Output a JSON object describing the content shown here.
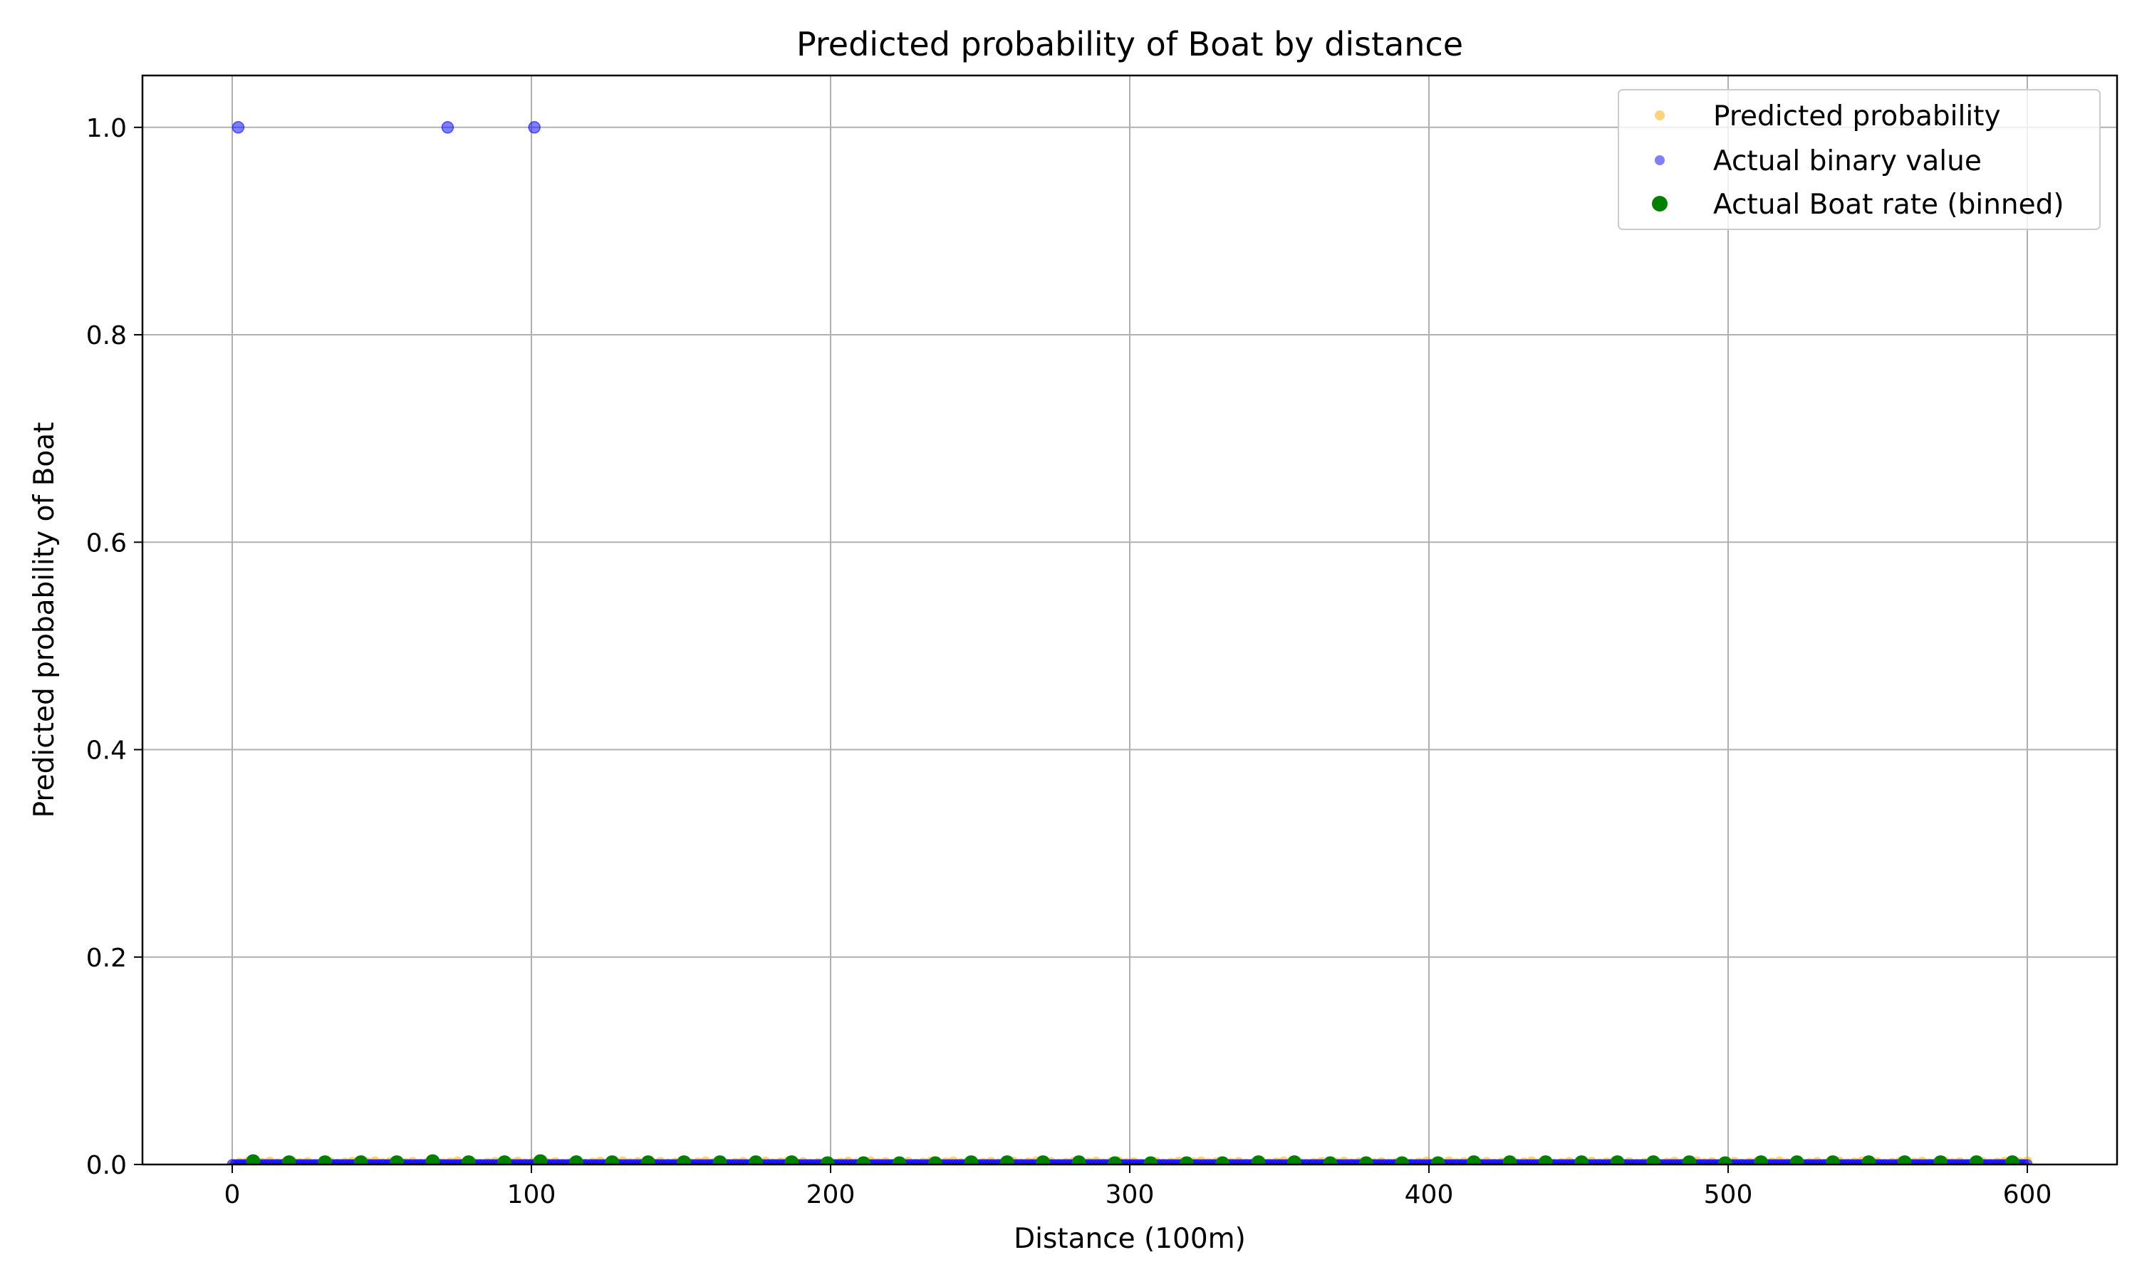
{
  "chart_data": {
    "type": "scatter",
    "title": "Predicted probability of Boat by distance",
    "xlabel": "Distance (100m)",
    "ylabel": "Predicted probability of Boat",
    "xlim": [
      -30,
      630
    ],
    "ylim": [
      0,
      1.05
    ],
    "xticks": [
      0,
      100,
      200,
      300,
      400,
      500,
      600
    ],
    "xtick_labels": [
      "0",
      "100",
      "200",
      "300",
      "400",
      "500",
      "600"
    ],
    "yticks": [
      0.0,
      0.2,
      0.4,
      0.6,
      0.8,
      1.0
    ],
    "ytick_labels": [
      "0.0",
      "0.2",
      "0.4",
      "0.6",
      "0.8",
      "1.0"
    ],
    "grid": true,
    "legend_position": "top-right",
    "series": [
      {
        "name": "Predicted probability",
        "color": "#ffa500",
        "opacity": 0.5,
        "marker": "small-dot",
        "x_range": [
          0,
          600
        ],
        "count": 240,
        "y_range": [
          0.0005,
          0.003
        ]
      },
      {
        "name": "Actual binary value",
        "color": "#0000ff",
        "opacity": 0.5,
        "marker": "small-dot",
        "ones_x": [
          2,
          72,
          101
        ],
        "zeros_x_range": [
          0,
          600
        ],
        "zeros_count": 600
      },
      {
        "name": "Actual Boat rate (binned)",
        "color": "#008000",
        "opacity": 1.0,
        "marker": "dot",
        "x": [
          7,
          19,
          31,
          43,
          55,
          67,
          79,
          91,
          103,
          115,
          127,
          139,
          151,
          163,
          175,
          187,
          199,
          211,
          223,
          235,
          247,
          259,
          271,
          283,
          295,
          307,
          319,
          331,
          343,
          355,
          367,
          379,
          391,
          403,
          415,
          427,
          439,
          451,
          463,
          475,
          487,
          499,
          511,
          523,
          535,
          547,
          559,
          571,
          583,
          595
        ],
        "y": [
          0.003,
          0.002,
          0.002,
          0.002,
          0.002,
          0.003,
          0.002,
          0.002,
          0.003,
          0.002,
          0.002,
          0.002,
          0.002,
          0.002,
          0.002,
          0.002,
          0.001,
          0.001,
          0.001,
          0.001,
          0.002,
          0.002,
          0.002,
          0.002,
          0.001,
          0.001,
          0.001,
          0.001,
          0.002,
          0.002,
          0.001,
          0.001,
          0.001,
          0.001,
          0.002,
          0.002,
          0.002,
          0.002,
          0.002,
          0.002,
          0.002,
          0.001,
          0.002,
          0.002,
          0.002,
          0.002,
          0.002,
          0.002,
          0.002,
          0.002
        ]
      }
    ]
  }
}
